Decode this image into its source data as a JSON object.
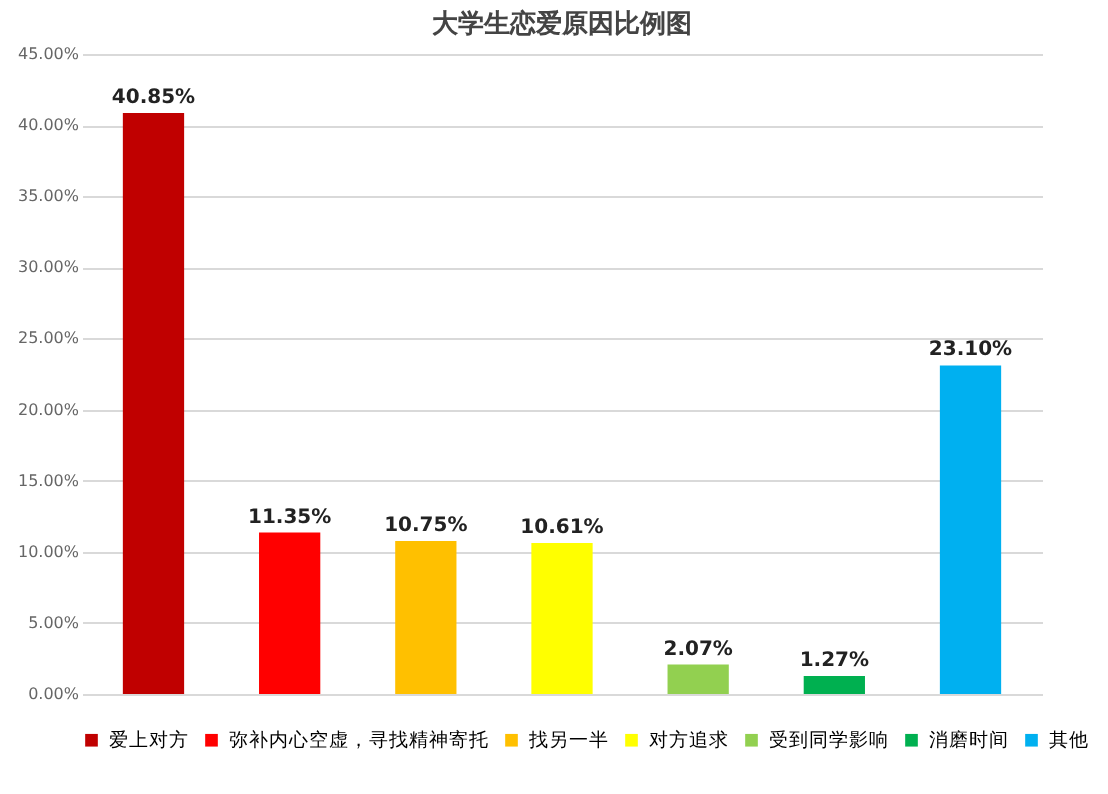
{
  "chart_data": {
    "type": "bar",
    "title": "大学生恋爱原因比例图",
    "categories": [
      null,
      null,
      null,
      null,
      null,
      null,
      null
    ],
    "series": [
      {
        "name": "爱上对方",
        "color": "#c00000",
        "values": [
          40.85,
          null,
          null,
          null,
          null,
          null,
          null
        ],
        "value_labels": [
          "40.85%",
          null,
          null,
          null,
          null,
          null,
          null
        ]
      },
      {
        "name": "弥补内心空虚，寻找精神寄托",
        "color": "#ff0000",
        "values": [
          null,
          11.35,
          null,
          null,
          null,
          null,
          null
        ],
        "value_labels": [
          null,
          "11.35%",
          null,
          null,
          null,
          null,
          null
        ]
      },
      {
        "name": "找另一半",
        "color": "#ffc000",
        "values": [
          null,
          null,
          10.75,
          null,
          null,
          null,
          null
        ],
        "value_labels": [
          null,
          null,
          "10.75%",
          null,
          null,
          null,
          null
        ]
      },
      {
        "name": "对方追求",
        "color": "#ffff00",
        "values": [
          null,
          null,
          null,
          10.61,
          null,
          null,
          null
        ],
        "value_labels": [
          null,
          null,
          null,
          "10.61%",
          null,
          null,
          null
        ]
      },
      {
        "name": "受到同学影响",
        "color": "#92d050",
        "values": [
          null,
          null,
          null,
          null,
          2.07,
          null,
          null
        ],
        "value_labels": [
          null,
          null,
          null,
          null,
          "2.07%",
          null,
          null
        ]
      },
      {
        "name": "消磨时间",
        "color": "#00b050",
        "values": [
          null,
          null,
          null,
          null,
          null,
          1.27,
          null
        ],
        "value_labels": [
          null,
          null,
          null,
          null,
          null,
          "1.27%",
          null
        ]
      },
      {
        "name": "其他",
        "color": "#00b0f0",
        "values": [
          null,
          null,
          null,
          null,
          null,
          null,
          23.1
        ],
        "value_labels": [
          null,
          null,
          null,
          null,
          null,
          null,
          "23.10%"
        ]
      }
    ],
    "ylim": [
      0,
      45
    ],
    "yticks": [
      {
        "value": 0,
        "label": "0.00%"
      },
      {
        "value": 5,
        "label": "5.00%"
      },
      {
        "value": 10,
        "label": "10.00%"
      },
      {
        "value": 15,
        "label": "15.00%"
      },
      {
        "value": 20,
        "label": "20.00%"
      },
      {
        "value": 25,
        "label": "25.00%"
      },
      {
        "value": 30,
        "label": "30.00%"
      },
      {
        "value": 35,
        "label": "35.00%"
      },
      {
        "value": 40,
        "label": "40.00%"
      },
      {
        "value": 45,
        "label": "45.00%"
      }
    ],
    "grid": "y",
    "legend": "bottom",
    "tick_labels": "y"
  }
}
